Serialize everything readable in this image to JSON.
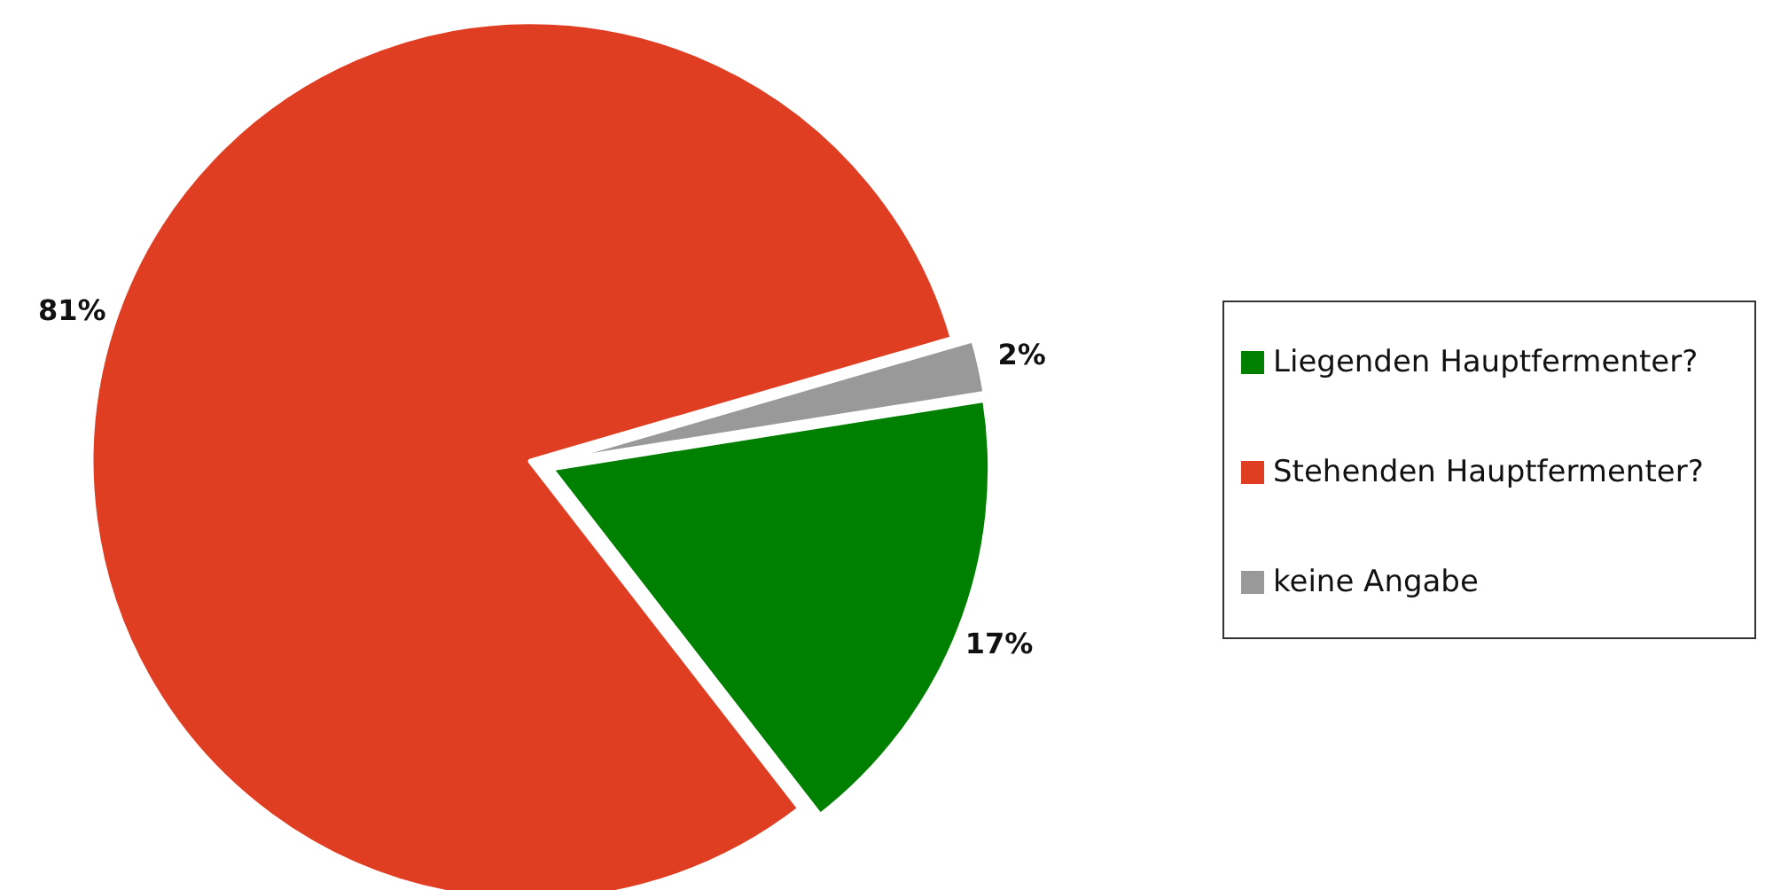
{
  "chart_data": {
    "type": "pie",
    "categories": [
      "Liegenden Hauptfermenter?",
      "Stehenden Hauptfermenter?",
      "keine Angabe"
    ],
    "values": [
      17,
      81,
      2
    ],
    "colors": [
      "#008000",
      "#e03e22",
      "#999999"
    ],
    "value_labels": [
      "17%",
      "81%",
      "2%"
    ],
    "legend": "right"
  }
}
